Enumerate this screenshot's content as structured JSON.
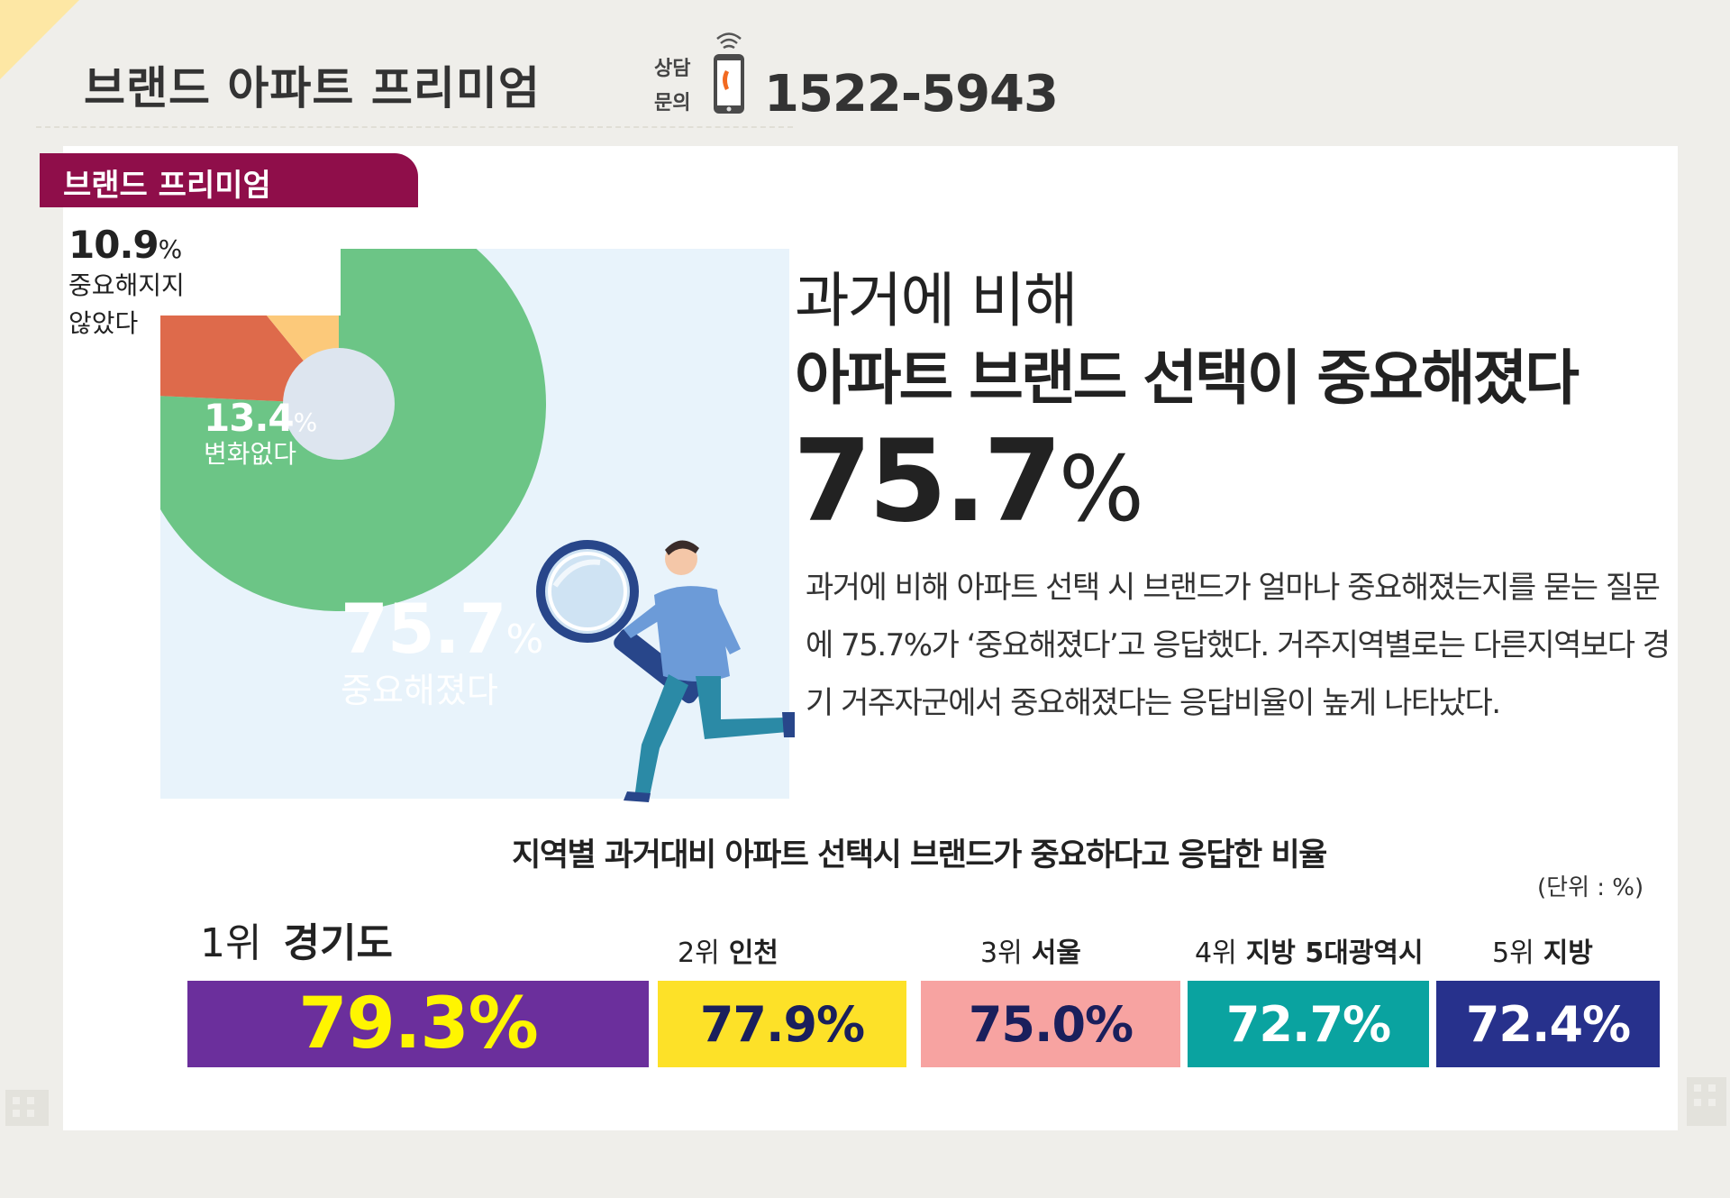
{
  "header": {
    "title": "브랜드 아파트 프리미엄",
    "consult_label": "상담\n문의",
    "phone": "1522-5943"
  },
  "tag": {
    "label": "브랜드 프리미엄"
  },
  "headline": {
    "sub": "과거에 비해",
    "main": "아파트 브랜드 선택이 중요해졌다",
    "value": "75.7",
    "pct": "%"
  },
  "description": "과거에 비해 아파트 선택 시 브랜드가 얼마나 중요해졌는지를 묻는 질문에 75.7%가 ‘중요해졌다’고 응답했다. 거주지역별로는 다른지역보다 경기 거주자군에서 중요해졌다는 응답비율이 높게 나타났다.",
  "chart_data": [
    {
      "type": "pie",
      "labels": [
        "중요해졌다",
        "변화없다",
        "중요해지지 않았다"
      ],
      "values": [
        75.7,
        13.4,
        10.9
      ],
      "colors": [
        "#6cc586",
        "#de6a4b",
        "#fcc97a"
      ],
      "value_texts": [
        "75.7",
        "13.4",
        "10.9"
      ],
      "label_texts": [
        "중요해졌다",
        "변화없다",
        "중요해지지\n않았다"
      ],
      "pct_suffix": "%"
    },
    {
      "type": "bar",
      "title": "지역별 과거대비 아파트 선택시 브랜드가 중요하다고 응답한 비율",
      "unit": "(단위 : %)",
      "ranks": [
        "1위",
        "2위",
        "3위",
        "4위",
        "5위"
      ],
      "categories": [
        "경기도",
        "인천",
        "서울",
        "지방 5대광역시",
        "지방"
      ],
      "values": [
        79.3,
        77.9,
        75.0,
        72.7,
        72.4
      ],
      "value_labels": [
        "79.3%",
        "77.9%",
        "75.0%",
        "72.7%",
        "72.4%"
      ],
      "colors": [
        "#6b2f9c",
        "#fde128",
        "#f7a3a1",
        "#0aa3a0",
        "#27318c"
      ],
      "label_colors": [
        "#fff500",
        "#1a1f5c",
        "#1a1f5c",
        "#ffffff",
        "#ffffff"
      ]
    }
  ]
}
